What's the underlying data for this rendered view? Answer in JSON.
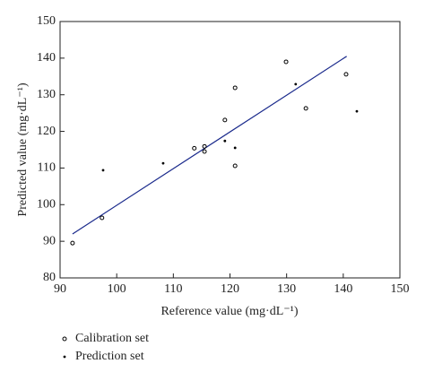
{
  "chart_data": {
    "type": "scatter",
    "x_label": "Reference value (mg·dL⁻¹)",
    "y_label": "Predicted value (mg·dL⁻¹)",
    "xlim": [
      90,
      150
    ],
    "ylim": [
      80,
      150
    ],
    "xticks": [
      90,
      100,
      110,
      120,
      130,
      140,
      150
    ],
    "yticks": [
      80,
      90,
      100,
      110,
      120,
      130,
      140,
      150
    ],
    "series": [
      {
        "name": "Calibration set",
        "marker": "open",
        "color": "#000000",
        "x": [
          92.2,
          97.4,
          113.7,
          115.5,
          115.5,
          119.1,
          120.9,
          120.9,
          129.9,
          133.4,
          140.5
        ],
        "y": [
          89.5,
          96.4,
          115.4,
          115.9,
          114.5,
          123.1,
          131.9,
          110.6,
          139.0,
          126.3,
          135.6
        ]
      },
      {
        "name": "Prediction set",
        "marker": "dot",
        "color": "#000000",
        "x": [
          97.6,
          108.2,
          119.1,
          120.9,
          131.6,
          142.4
        ],
        "y": [
          109.4,
          111.3,
          117.4,
          115.5,
          132.9,
          125.5
        ]
      }
    ],
    "fit": {
      "color": "#1a2a8c",
      "x": [
        92.2,
        140.6
      ],
      "y": [
        92.0,
        140.5
      ]
    }
  }
}
